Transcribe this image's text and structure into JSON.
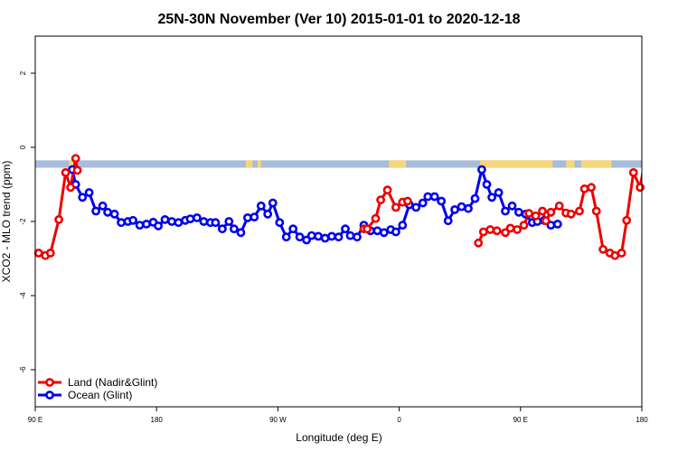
{
  "chart_data": {
    "type": "line",
    "title": "25N-30N November (Ver 10)   2015-01-01 to 2020-12-18",
    "xlabel": "Longitude (deg E)",
    "ylabel": "XCO2 - MLO trend (ppm)",
    "xlim": [
      90,
      450
    ],
    "ylim": [
      -7,
      3
    ],
    "x_ticks": [
      90,
      162,
      234,
      306,
      378,
      450
    ],
    "x_tick_labels": [
      "90 E",
      "180",
      "90 W",
      "0",
      "90 E",
      "180"
    ],
    "y_ticks": [
      -6,
      -4,
      -2,
      0,
      2
    ],
    "y_tick_labels": [
      "-6",
      "-4",
      "-2",
      "0",
      "2"
    ],
    "grid": false,
    "legend_position": "bottom-left",
    "land_ocean_strip": {
      "y_range": [
        -0.55,
        -0.35
      ],
      "ocean_color": "#a7bcd9",
      "land_color": "#f7d67a",
      "land_segments": [
        [
          110,
          115
        ],
        [
          215,
          219
        ],
        [
          222,
          224
        ],
        [
          300,
          310
        ],
        [
          354,
          397
        ],
        [
          405,
          410
        ],
        [
          414,
          432
        ]
      ]
    },
    "series": [
      {
        "name": "Land (Nadir&Glint)",
        "color": "#ee0000",
        "segments": [
          [
            [
              92,
              -2.85
            ],
            [
              96,
              -2.92
            ],
            [
              99,
              -2.85
            ],
            [
              104,
              -1.95
            ],
            [
              108,
              -0.68
            ],
            [
              111,
              -1.08
            ],
            [
              114,
              -0.3
            ],
            [
              115,
              -0.62
            ]
          ],
          [
            [
              285,
              -2.2
            ],
            [
              287,
              -2.2
            ],
            [
              292,
              -1.92
            ],
            [
              295,
              -1.42
            ],
            [
              299,
              -1.15
            ],
            [
              304,
              -1.62
            ],
            [
              308,
              -1.48
            ],
            [
              311,
              -1.45
            ]
          ],
          [
            [
              353,
              -2.58
            ],
            [
              356,
              -2.28
            ],
            [
              360,
              -2.22
            ],
            [
              364,
              -2.25
            ],
            [
              369,
              -2.3
            ],
            [
              372,
              -2.18
            ],
            [
              376,
              -2.22
            ],
            [
              380,
              -2.1
            ],
            [
              383,
              -1.78
            ],
            [
              387,
              -1.85
            ],
            [
              391,
              -1.72
            ],
            [
              393,
              -1.98
            ],
            [
              396,
              -1.75
            ],
            [
              401,
              -1.58
            ],
            [
              405,
              -1.77
            ],
            [
              408,
              -1.8
            ],
            [
              413,
              -1.72
            ],
            [
              416,
              -1.12
            ],
            [
              420,
              -1.08
            ],
            [
              423,
              -1.72
            ],
            [
              427,
              -2.75
            ],
            [
              431,
              -2.85
            ],
            [
              434,
              -2.92
            ],
            [
              438,
              -2.85
            ],
            [
              441,
              -1.97
            ],
            [
              445,
              -0.68
            ],
            [
              449,
              -1.08
            ],
            [
              452,
              -0.3
            ],
            [
              453,
              -0.62
            ]
          ]
        ]
      },
      {
        "name": "Ocean (Glint)",
        "color": "#0000ee",
        "segments": [
          [
            [
              112,
              -0.6
            ],
            [
              114,
              -1.0
            ],
            [
              118,
              -1.35
            ],
            [
              122,
              -1.22
            ],
            [
              126,
              -1.72
            ],
            [
              130,
              -1.58
            ],
            [
              133,
              -1.75
            ],
            [
              137,
              -1.8
            ],
            [
              141,
              -2.03
            ],
            [
              145,
              -2.0
            ],
            [
              148,
              -1.97
            ],
            [
              152,
              -2.1
            ],
            [
              156,
              -2.07
            ],
            [
              160,
              -2.02
            ],
            [
              163,
              -2.12
            ],
            [
              167,
              -1.95
            ],
            [
              171,
              -2.0
            ],
            [
              175,
              -2.03
            ],
            [
              179,
              -1.97
            ],
            [
              182,
              -1.93
            ],
            [
              186,
              -1.9
            ],
            [
              190,
              -2.0
            ],
            [
              194,
              -2.03
            ],
            [
              197,
              -2.03
            ],
            [
              201,
              -2.2
            ],
            [
              205,
              -2.0
            ],
            [
              208,
              -2.2
            ],
            [
              212,
              -2.3
            ],
            [
              216,
              -1.9
            ],
            [
              220,
              -1.88
            ],
            [
              224,
              -1.58
            ],
            [
              228,
              -1.8
            ],
            [
              231,
              -1.5
            ],
            [
              235,
              -2.03
            ],
            [
              239,
              -2.42
            ],
            [
              243,
              -2.2
            ],
            [
              247,
              -2.42
            ],
            [
              251,
              -2.5
            ],
            [
              254,
              -2.38
            ],
            [
              258,
              -2.4
            ],
            [
              262,
              -2.45
            ],
            [
              266,
              -2.4
            ],
            [
              270,
              -2.42
            ],
            [
              274,
              -2.2
            ],
            [
              277,
              -2.38
            ],
            [
              281,
              -2.42
            ],
            [
              285,
              -2.1
            ],
            [
              289,
              -2.25
            ],
            [
              293,
              -2.25
            ],
            [
              297,
              -2.3
            ],
            [
              301,
              -2.22
            ],
            [
              304,
              -2.28
            ],
            [
              308,
              -2.1
            ],
            [
              312,
              -1.55
            ],
            [
              316,
              -1.62
            ],
            [
              320,
              -1.5
            ],
            [
              323,
              -1.33
            ],
            [
              327,
              -1.33
            ],
            [
              331,
              -1.45
            ],
            [
              335,
              -1.98
            ],
            [
              339,
              -1.68
            ],
            [
              343,
              -1.6
            ],
            [
              347,
              -1.65
            ],
            [
              351,
              -1.38
            ],
            [
              355,
              -0.6
            ],
            [
              358,
              -1.0
            ],
            [
              361,
              -1.35
            ],
            [
              365,
              -1.22
            ],
            [
              369,
              -1.72
            ],
            [
              373,
              -1.58
            ],
            [
              377,
              -1.75
            ],
            [
              381,
              -1.8
            ],
            [
              385,
              -2.03
            ],
            [
              388,
              -2.0
            ],
            [
              392,
              -1.97
            ],
            [
              396,
              -2.1
            ],
            [
              400,
              -2.07
            ]
          ]
        ]
      }
    ]
  }
}
